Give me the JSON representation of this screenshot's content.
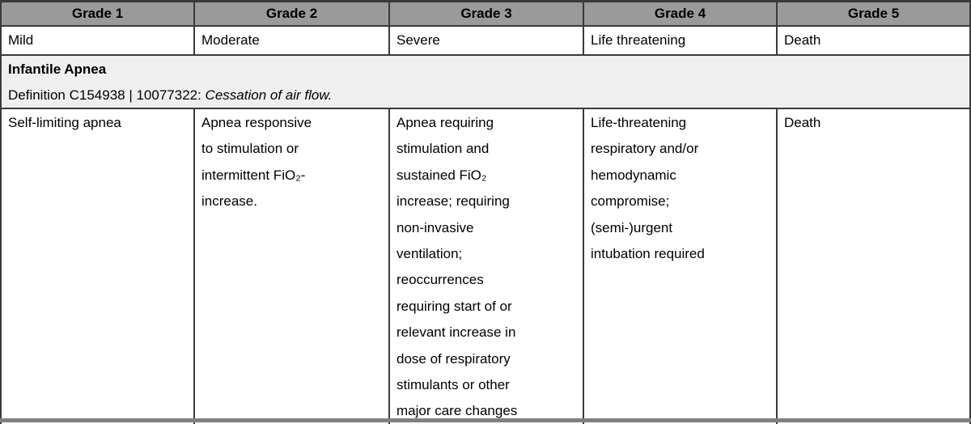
{
  "colors": {
    "header_bg": "#9a9a9a",
    "definition_bg": "#efefef",
    "border": "#3a3a3a",
    "bottom_bar": "#808080"
  },
  "table": {
    "header": [
      "Grade 1",
      "Grade 2",
      "Grade 3",
      "Grade 4",
      "Grade 5"
    ],
    "severity": [
      "Mild",
      "Moderate",
      "Severe",
      "Life threatening",
      "Death"
    ],
    "term": {
      "name": "Infantile Apnea",
      "definition_prefix": "Definition C154938 | 10077322: ",
      "definition_italic": "Cessation of air flow."
    },
    "grades": [
      "Self-limiting apnea",
      "Apnea responsive\nto stimulation or\nintermittent FiO₂-\nincrease.",
      "Apnea requiring\nstimulation and\nsustained FiO₂\nincrease; requiring\nnon-invasive\nventilation;\nreoccurrences\nrequiring start of or\nrelevant increase in\ndose of respiratory\nstimulants or other\nmajor care changes",
      "Life-threatening\nrespiratory and/or\nhemodynamic\ncompromise;\n(semi-)urgent\nintubation required",
      "Death"
    ]
  }
}
